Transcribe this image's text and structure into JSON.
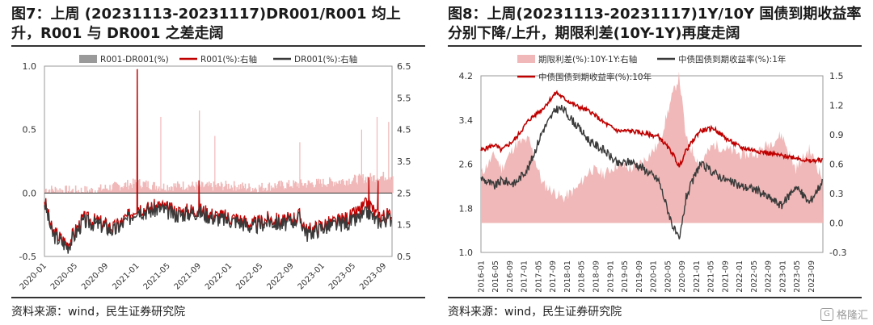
{
  "left": {
    "title": "图7：上周 (20231113-20231117)DR001/R001  均上升，R001 与 DR001 之差走阔",
    "source": "资料来源：wind，民生证券研究院"
  },
  "right": {
    "title": "图8：上周(20231113-20231117)1Y/10Y  国债到期收益率分别下降/上升，期限利差(10Y-1Y)再度走阔",
    "source": "资料来源：wind，民生证券研究院"
  },
  "watermark": "格隆汇",
  "colors": {
    "red": "#c00000",
    "dark": "#3a3a3a",
    "pink": "#f0b8b8",
    "gray": "#9a9a9a"
  },
  "chart_data": [
    {
      "type": "line",
      "series": [
        {
          "name": "R001-DR001(%)",
          "kind": "bar",
          "axis": "left"
        },
        {
          "name": "R001(%):右轴",
          "kind": "line",
          "axis": "right"
        },
        {
          "name": "DR001(%):右轴",
          "kind": "line",
          "axis": "right"
        }
      ],
      "xticks": [
        "2020-01",
        "2020-05",
        "2020-09",
        "2021-01",
        "2021-05",
        "2021-09",
        "2022-01",
        "2022-05",
        "2022-09",
        "2023-01",
        "2023-05",
        "2023-09"
      ],
      "xrange": [
        "2020-01",
        "2023-11"
      ],
      "yticks_left": [
        "1.0",
        "0.5",
        "0.0",
        "-0.5"
      ],
      "ylim_left": [
        -0.5,
        1.0
      ],
      "yticks_right": [
        "6.5",
        "5.5",
        "4.5",
        "3.5",
        "2.5",
        "1.5",
        "0.5"
      ],
      "ylim_right": [
        0.5,
        6.5
      ],
      "dr001_points": [
        [
          0,
          2.2
        ],
        [
          1,
          1.2
        ],
        [
          3,
          0.8
        ],
        [
          5,
          1.6
        ],
        [
          7,
          1.5
        ],
        [
          9,
          1.3
        ],
        [
          11,
          1.7
        ],
        [
          12,
          2.0
        ],
        [
          13,
          1.9
        ],
        [
          15,
          2.0
        ],
        [
          17,
          1.8
        ],
        [
          20,
          1.9
        ],
        [
          22,
          1.7
        ],
        [
          25,
          1.6
        ],
        [
          27,
          1.4
        ],
        [
          29,
          1.6
        ],
        [
          31,
          1.5
        ],
        [
          33,
          1.7
        ],
        [
          34,
          1.2
        ],
        [
          36,
          1.4
        ],
        [
          38,
          1.5
        ],
        [
          40,
          1.6
        ],
        [
          42,
          1.9
        ],
        [
          43,
          1.6
        ],
        [
          45,
          1.7
        ]
      ],
      "r001_points": [
        [
          0,
          2.3
        ],
        [
          1,
          1.3
        ],
        [
          3,
          0.9
        ],
        [
          5,
          1.7
        ],
        [
          7,
          1.6
        ],
        [
          9,
          1.4
        ],
        [
          11,
          1.8
        ],
        [
          12,
          2.1
        ],
        [
          13,
          2.0
        ],
        [
          15,
          2.1
        ],
        [
          17,
          1.9
        ],
        [
          20,
          2.0
        ],
        [
          22,
          1.8
        ],
        [
          25,
          1.7
        ],
        [
          27,
          1.5
        ],
        [
          29,
          1.7
        ],
        [
          31,
          1.6
        ],
        [
          33,
          1.8
        ],
        [
          34,
          1.3
        ],
        [
          36,
          1.5
        ],
        [
          38,
          1.6
        ],
        [
          40,
          1.8
        ],
        [
          42,
          2.2
        ],
        [
          43,
          1.8
        ],
        [
          45,
          1.8
        ]
      ],
      "spread_points": [
        [
          0,
          0.03
        ],
        [
          3,
          0.02
        ],
        [
          6,
          0.02
        ],
        [
          9,
          0.05
        ],
        [
          12,
          0.08
        ],
        [
          15,
          0.05
        ],
        [
          18,
          0.06
        ],
        [
          21,
          0.05
        ],
        [
          24,
          0.06
        ],
        [
          27,
          0.04
        ],
        [
          30,
          0.06
        ],
        [
          33,
          0.07
        ],
        [
          36,
          0.08
        ],
        [
          39,
          0.1
        ],
        [
          42,
          0.12
        ],
        [
          45,
          0.14
        ]
      ],
      "spikes": [
        [
          12,
          0.98
        ],
        [
          15,
          0.6
        ],
        [
          20,
          0.65
        ],
        [
          22,
          0.45
        ],
        [
          33,
          0.4
        ],
        [
          41,
          0.5
        ],
        [
          43,
          0.6
        ],
        [
          44.5,
          0.56
        ]
      ]
    },
    {
      "type": "line",
      "series": [
        {
          "name": "期限利差(%):10Y-1Y:右轴",
          "kind": "area",
          "axis": "right"
        },
        {
          "name": "中债国债到期收益率(%):1年",
          "kind": "line",
          "axis": "left"
        },
        {
          "name": "中债国债到期收益率(%):10年",
          "kind": "line",
          "axis": "left"
        }
      ],
      "xticks": [
        "2016-01",
        "2016-05",
        "2016-09",
        "2017-01",
        "2017-05",
        "2017-09",
        "2018-01",
        "2018-05",
        "2018-09",
        "2019-01",
        "2019-05",
        "2019-09",
        "2020-01",
        "2020-05",
        "2020-09",
        "2021-01",
        "2021-05",
        "2021-09",
        "2022-01",
        "2022-05",
        "2022-09",
        "2023-01",
        "2023-05",
        "2023-09"
      ],
      "xrange": [
        "2016-01",
        "2023-11"
      ],
      "yticks_left": [
        "4.2",
        "3.4",
        "2.6",
        "1.8",
        "1.0"
      ],
      "ylim_left": [
        1.0,
        4.2
      ],
      "yticks_right": [
        "1.5",
        "1.2",
        "0.9",
        "0.6",
        "0.3",
        "0.0",
        "-0.3"
      ],
      "ylim_right": [
        -0.3,
        1.5
      ],
      "y10_points": [
        [
          0,
          2.85
        ],
        [
          2,
          2.95
        ],
        [
          3,
          2.85
        ],
        [
          5,
          3.05
        ],
        [
          7,
          3.4
        ],
        [
          9,
          3.6
        ],
        [
          11,
          3.9
        ],
        [
          12,
          3.8
        ],
        [
          14,
          3.65
        ],
        [
          16,
          3.55
        ],
        [
          18,
          3.35
        ],
        [
          20,
          3.2
        ],
        [
          22,
          3.2
        ],
        [
          24,
          3.15
        ],
        [
          26,
          3.1
        ],
        [
          28,
          2.8
        ],
        [
          29,
          2.55
        ],
        [
          30,
          2.85
        ],
        [
          32,
          3.2
        ],
        [
          34,
          3.25
        ],
        [
          36,
          3.05
        ],
        [
          38,
          2.9
        ],
        [
          40,
          2.85
        ],
        [
          42,
          2.8
        ],
        [
          44,
          2.75
        ],
        [
          46,
          2.72
        ],
        [
          48,
          2.65
        ],
        [
          50,
          2.68
        ]
      ],
      "y1_points": [
        [
          0,
          2.35
        ],
        [
          2,
          2.2
        ],
        [
          3,
          2.3
        ],
        [
          5,
          2.25
        ],
        [
          7,
          2.55
        ],
        [
          9,
          3.2
        ],
        [
          11,
          3.6
        ],
        [
          12,
          3.6
        ],
        [
          14,
          3.3
        ],
        [
          16,
          3.0
        ],
        [
          18,
          2.85
        ],
        [
          20,
          2.6
        ],
        [
          22,
          2.65
        ],
        [
          24,
          2.5
        ],
        [
          26,
          2.3
        ],
        [
          28,
          1.5
        ],
        [
          29,
          1.2
        ],
        [
          30,
          2.0
        ],
        [
          32,
          2.6
        ],
        [
          34,
          2.45
        ],
        [
          36,
          2.3
        ],
        [
          38,
          2.2
        ],
        [
          40,
          2.15
        ],
        [
          42,
          2.0
        ],
        [
          44,
          1.85
        ],
        [
          46,
          2.2
        ],
        [
          48,
          1.9
        ],
        [
          50,
          2.3
        ]
      ],
      "spread_points": [
        [
          0,
          0.5
        ],
        [
          2,
          0.7
        ],
        [
          3,
          0.55
        ],
        [
          5,
          0.8
        ],
        [
          7,
          0.85
        ],
        [
          9,
          0.4
        ],
        [
          11,
          0.3
        ],
        [
          12,
          0.25
        ],
        [
          14,
          0.35
        ],
        [
          16,
          0.55
        ],
        [
          18,
          0.5
        ],
        [
          20,
          0.6
        ],
        [
          22,
          0.55
        ],
        [
          24,
          0.65
        ],
        [
          26,
          0.8
        ],
        [
          28,
          1.3
        ],
        [
          29,
          1.5
        ],
        [
          30,
          0.85
        ],
        [
          32,
          0.6
        ],
        [
          34,
          0.8
        ],
        [
          36,
          0.75
        ],
        [
          38,
          0.7
        ],
        [
          40,
          0.7
        ],
        [
          42,
          0.8
        ],
        [
          44,
          0.9
        ],
        [
          46,
          0.55
        ],
        [
          48,
          0.75
        ],
        [
          50,
          0.45
        ]
      ]
    }
  ]
}
